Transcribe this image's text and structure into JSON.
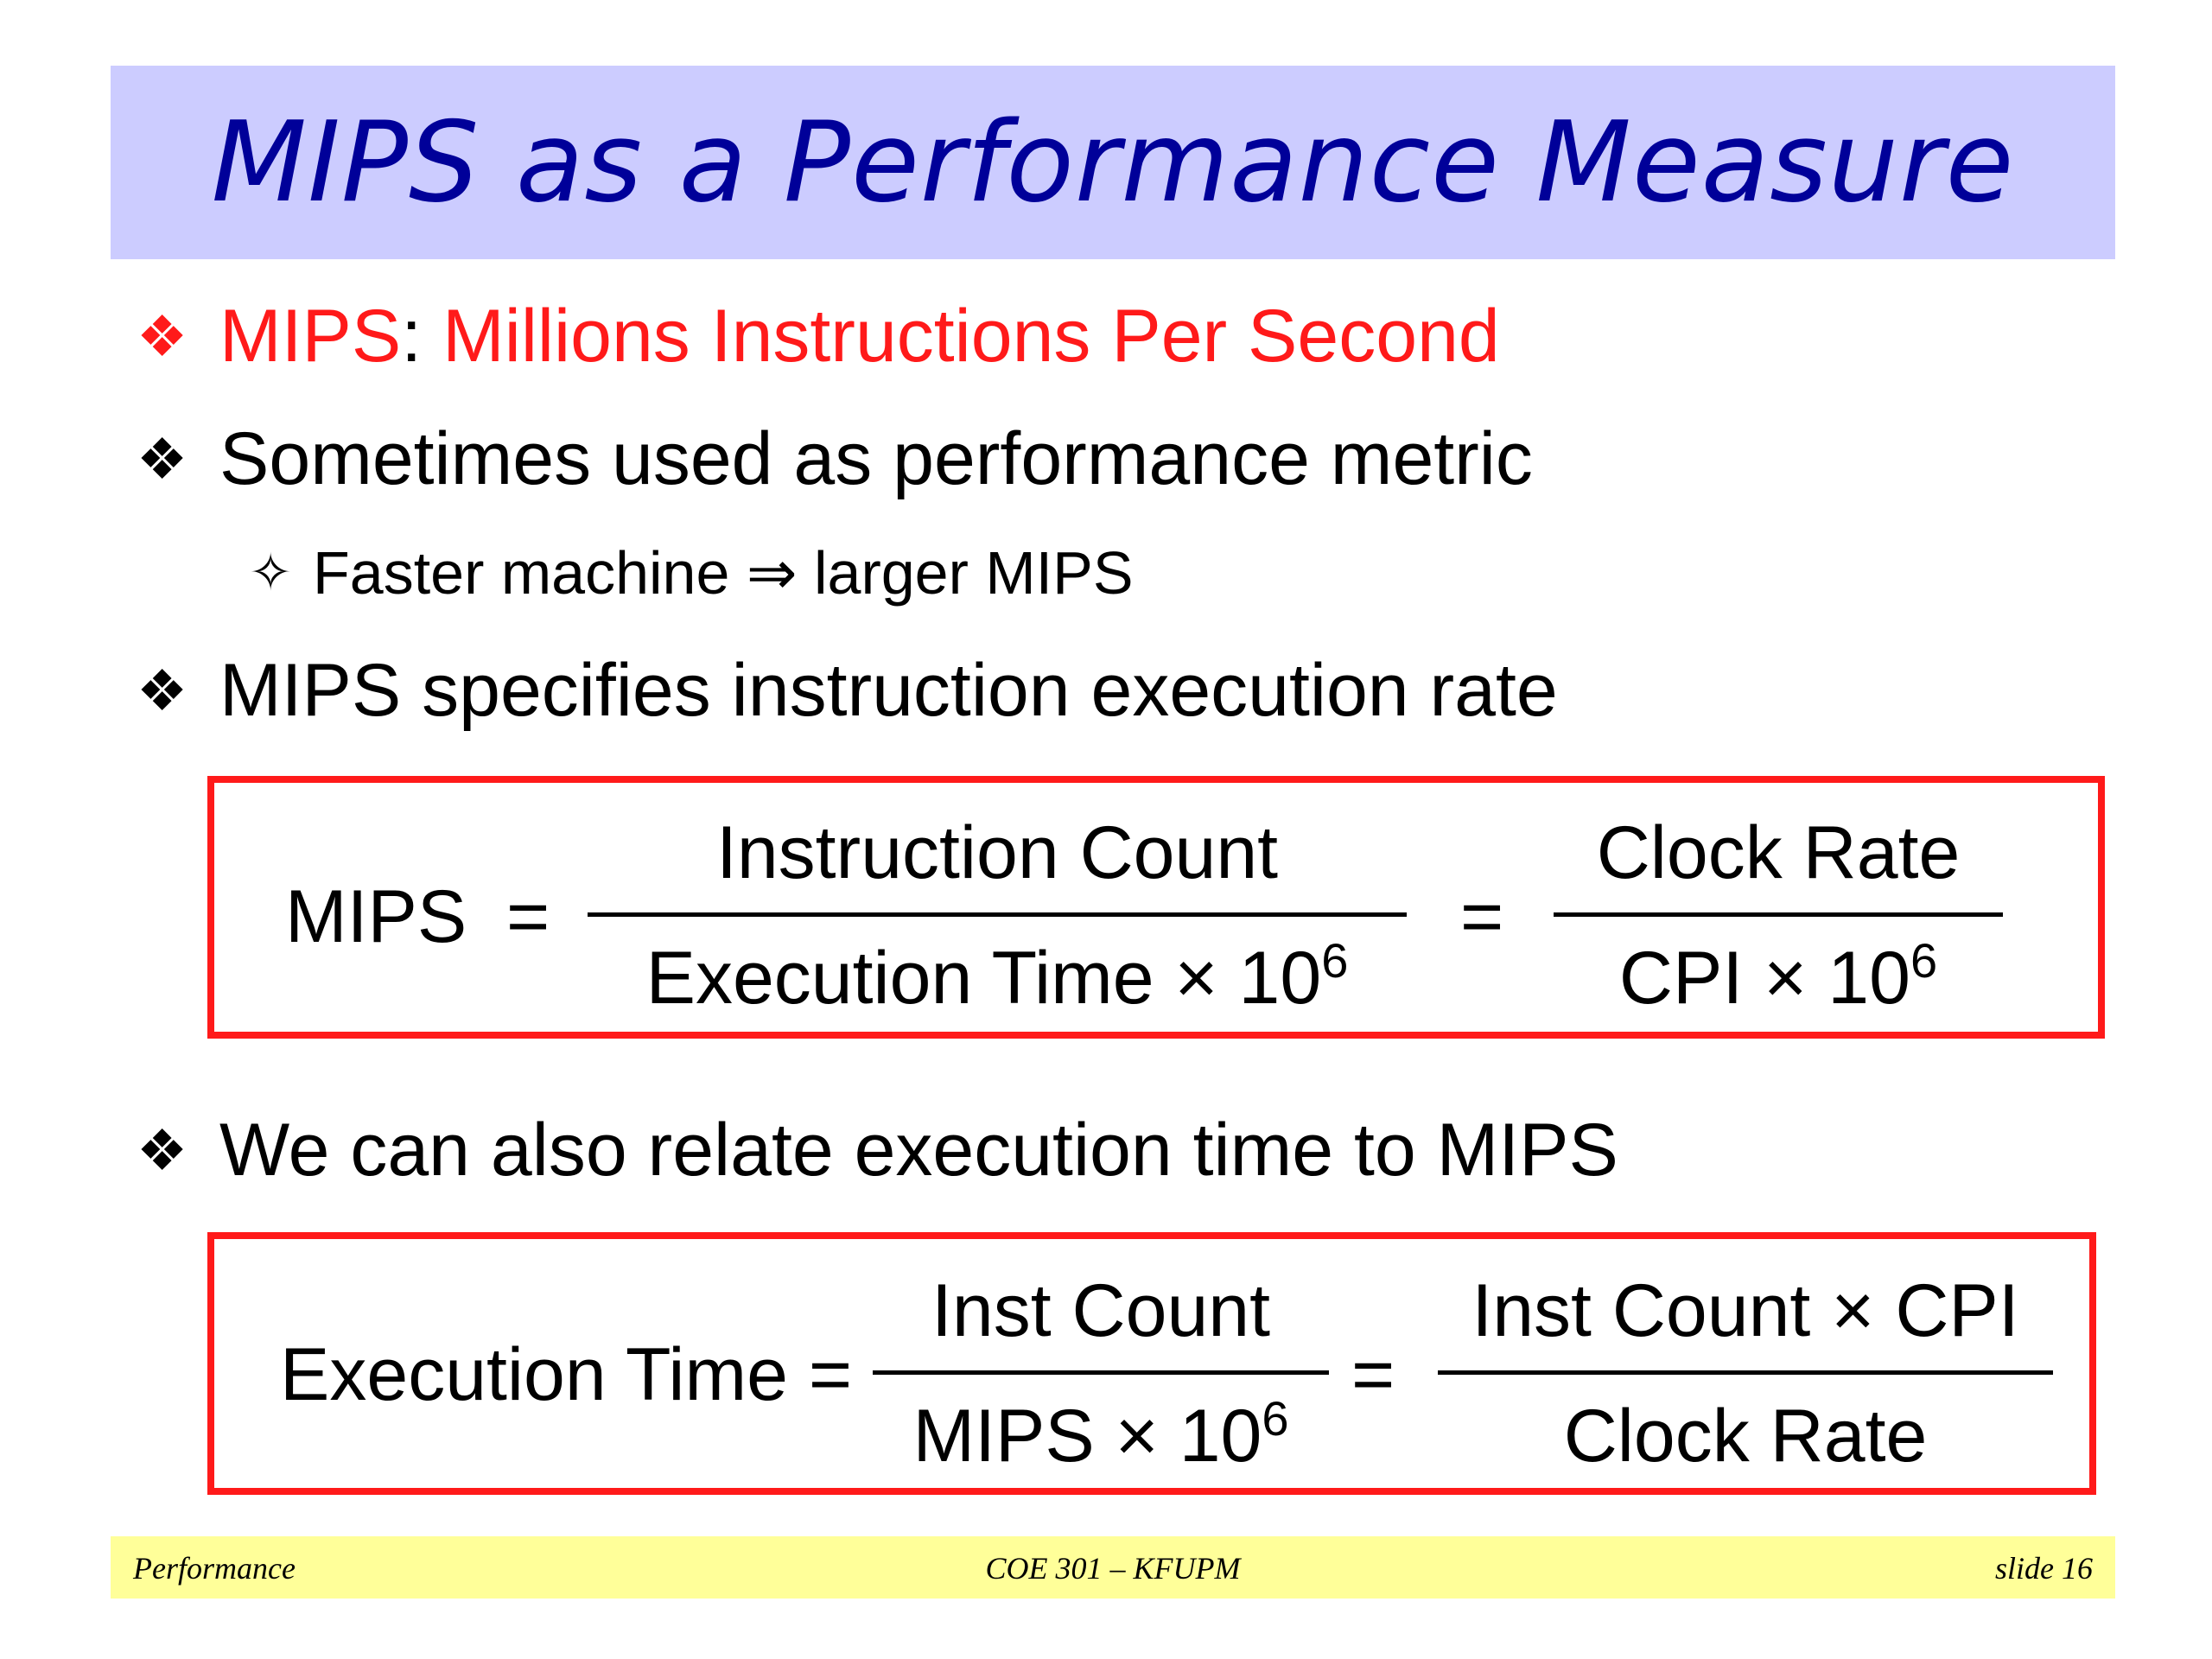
{
  "title": "MIPS as a Performance Measure",
  "bullets": {
    "b1": {
      "term": "MIPS",
      "sep": ":",
      "text": "Millions Instructions Per Second"
    },
    "b2": {
      "text": "Sometimes used as performance metric"
    },
    "b2_sub": {
      "text": "Faster machine ⇒ larger MIPS"
    },
    "b3": {
      "text": "MIPS specifies instruction execution rate"
    },
    "b4": {
      "text": "We can also relate execution time to MIPS"
    }
  },
  "formula1": {
    "lhs": "MIPS",
    "eq1": "=",
    "frac1_num": "Instruction Count",
    "frac1_den": "Execution Time × 10",
    "frac1_den_exp": "6",
    "eq2": "=",
    "frac2_num": "Clock Rate",
    "frac2_den": "CPI × 10",
    "frac2_den_exp": "6"
  },
  "formula2": {
    "lhs": "Execution Time =",
    "frac1_num": "Inst Count",
    "frac1_den": "MIPS × 10",
    "frac1_den_exp": "6",
    "eq2": "=",
    "frac2_num": "Inst Count × CPI",
    "frac2_den": "Clock Rate"
  },
  "footer": {
    "left": "Performance",
    "center": "COE 301 – KFUPM",
    "right": "slide 16"
  },
  "colors": {
    "title_bg": "#ccccff",
    "title_text": "#000099",
    "accent_red": "#ff1a1a",
    "footer_bg": "#ffff99"
  },
  "icons": {
    "bullet": "four-diamond-bullet-icon",
    "sub_bullet": "four-point-star-icon"
  }
}
